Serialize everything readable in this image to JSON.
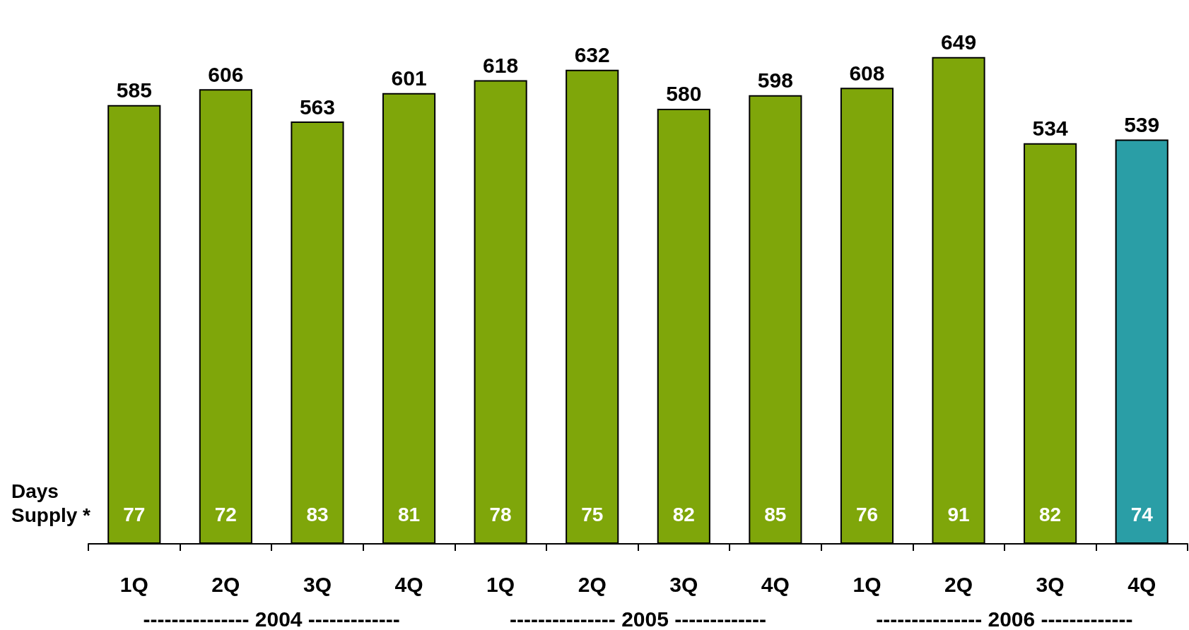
{
  "chart_data": {
    "type": "bar",
    "categories": [
      "1Q",
      "2Q",
      "3Q",
      "4Q",
      "1Q",
      "2Q",
      "3Q",
      "4Q",
      "1Q",
      "2Q",
      "3Q",
      "4Q"
    ],
    "values": [
      585,
      606,
      563,
      601,
      618,
      632,
      580,
      598,
      608,
      649,
      534,
      539
    ],
    "colors": [
      "#7fa60a",
      "#7fa60a",
      "#7fa60a",
      "#7fa60a",
      "#7fa60a",
      "#7fa60a",
      "#7fa60a",
      "#7fa60a",
      "#7fa60a",
      "#7fa60a",
      "#7fa60a",
      "#2a9ea6"
    ],
    "data_labels": true,
    "annotations": [
      "Days Supply *",
      "77",
      "72",
      "83",
      "81",
      "78",
      "75",
      "82",
      "85",
      "76",
      "91",
      "82",
      "74",
      "--------------- 2004 -------------",
      "--------------- 2005 -------------",
      "--------------- 2006 -------------"
    ]
  }
}
